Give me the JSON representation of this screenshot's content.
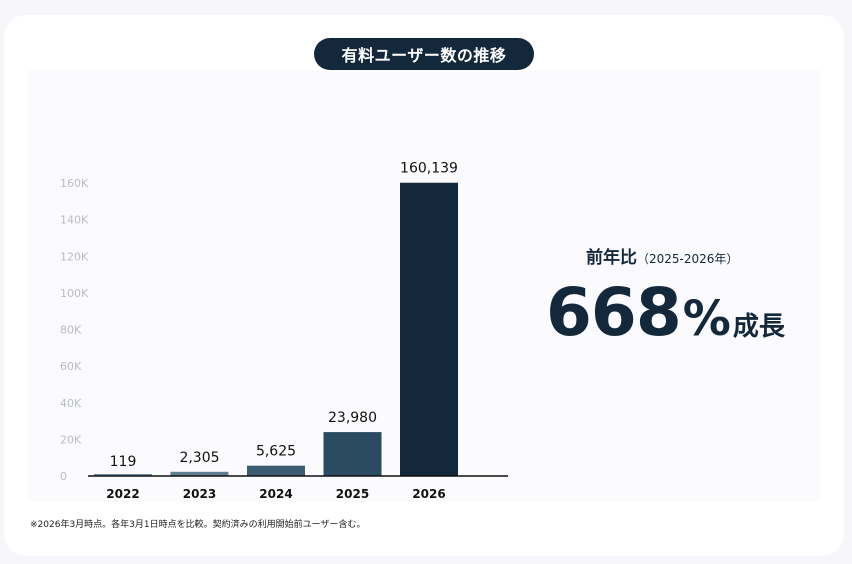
{
  "title": "有料ユーザー数の推移",
  "yoy": {
    "label": "前年比",
    "period": "（2025-2026年）",
    "value": "668",
    "percent": "%",
    "suffix": "成長"
  },
  "footnote": "※2026年3月時点。各年3月1日時点を比較。契約済みの利用開始前ユーザー含む。",
  "colors": {
    "title_bg": "#13283a",
    "bar_2022": "#6b8a9e",
    "bar_2023": "#5f7f93",
    "bar_2024": "#3d5d72",
    "bar_2025": "#2a4b62",
    "bar_2026": "#13283a",
    "tick_text": "#b8bcc4"
  },
  "chart_data": {
    "type": "bar",
    "categories": [
      "2022",
      "2023",
      "2024",
      "2025",
      "2026"
    ],
    "values": [
      119,
      2305,
      5625,
      23980,
      160139
    ],
    "value_labels": [
      "119",
      "2,305",
      "5,625",
      "23,980",
      "160,139"
    ],
    "ylim": [
      0,
      160000
    ],
    "yticks": [
      0,
      20000,
      40000,
      60000,
      80000,
      100000,
      120000,
      140000,
      160000
    ],
    "ytick_labels": [
      "0",
      "20K",
      "40K",
      "60K",
      "80K",
      "100K",
      "120K",
      "140K",
      "160K"
    ],
    "grid": false,
    "xlabel": "",
    "ylabel": ""
  }
}
